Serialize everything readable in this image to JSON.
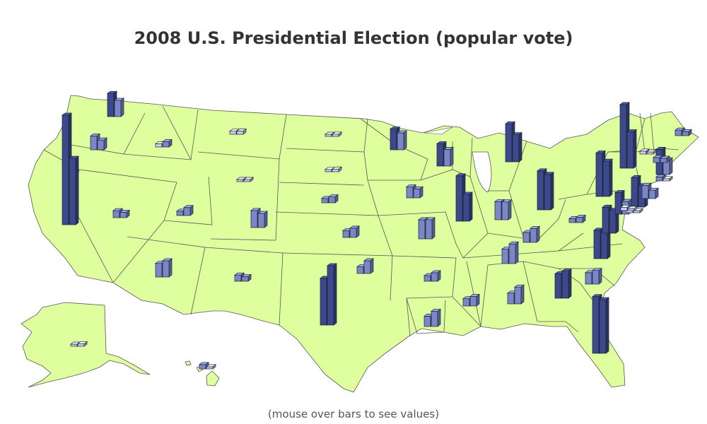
{
  "title": "2008 U.S. Presidential Election (popular vote)",
  "footnote": "(mouse over bars to see values)",
  "colors": {
    "land": "#dfff9f",
    "border": "#555555",
    "bar_large": "#3c4a8c",
    "bar_medium": "#7a87c6",
    "bar_small": "#c9cff0",
    "bar_outline": "#1e2233"
  },
  "chart_data": {
    "type": "map-bar",
    "legend": [],
    "bars_by_state": [
      {
        "state": "WA",
        "values": [
          1750000,
          1230000
        ]
      },
      {
        "state": "OR",
        "values": [
          1040000,
          740000
        ]
      },
      {
        "state": "CA",
        "values": [
          8270000,
          5010000
        ]
      },
      {
        "state": "NV",
        "values": [
          530000,
          410000
        ]
      },
      {
        "state": "ID",
        "values": [
          240000,
          400000
        ]
      },
      {
        "state": "MT",
        "values": [
          230000,
          240000
        ]
      },
      {
        "state": "WY",
        "values": [
          80000,
          160000
        ]
      },
      {
        "state": "UT",
        "values": [
          330000,
          600000
        ]
      },
      {
        "state": "CO",
        "values": [
          1290000,
          1070000
        ]
      },
      {
        "state": "AZ",
        "values": [
          1030000,
          1230000
        ]
      },
      {
        "state": "NM",
        "values": [
          470000,
          350000
        ]
      },
      {
        "state": "ND",
        "values": [
          140000,
          170000
        ]
      },
      {
        "state": "SD",
        "values": [
          170000,
          200000
        ]
      },
      {
        "state": "NE",
        "values": [
          330000,
          450000
        ]
      },
      {
        "state": "KS",
        "values": [
          510000,
          700000
        ]
      },
      {
        "state": "OK",
        "values": [
          500000,
          960000
        ]
      },
      {
        "state": "TX",
        "values": [
          3530000,
          4480000
        ]
      },
      {
        "state": "MN",
        "values": [
          1570000,
          1280000
        ]
      },
      {
        "state": "IA",
        "values": [
          830000,
          680000
        ]
      },
      {
        "state": "MO",
        "values": [
          1440000,
          1450000
        ]
      },
      {
        "state": "AR",
        "values": [
          420000,
          640000
        ]
      },
      {
        "state": "LA",
        "values": [
          780000,
          1150000
        ]
      },
      {
        "state": "WI",
        "values": [
          1680000,
          1260000
        ]
      },
      {
        "state": "IL",
        "values": [
          3420000,
          2030000
        ]
      },
      {
        "state": "MI",
        "values": [
          2870000,
          2050000
        ]
      },
      {
        "state": "IN",
        "values": [
          1370000,
          1350000
        ]
      },
      {
        "state": "OH",
        "values": [
          2940000,
          2680000
        ]
      },
      {
        "state": "KY",
        "values": [
          750000,
          1050000
        ]
      },
      {
        "state": "TN",
        "values": [
          1090000,
          1480000
        ]
      },
      {
        "state": "MS",
        "values": [
          550000,
          720000
        ]
      },
      {
        "state": "AL",
        "values": [
          810000,
          1270000
        ]
      },
      {
        "state": "GA",
        "values": [
          1840000,
          2050000
        ]
      },
      {
        "state": "FL",
        "values": [
          4280000,
          4050000
        ]
      },
      {
        "state": "SC",
        "values": [
          860000,
          1030000
        ]
      },
      {
        "state": "NC",
        "values": [
          2140000,
          2130000
        ]
      },
      {
        "state": "VA",
        "values": [
          1960000,
          1730000
        ]
      },
      {
        "state": "WV",
        "values": [
          300000,
          400000
        ]
      },
      {
        "state": "PA",
        "values": [
          3280000,
          2660000
        ]
      },
      {
        "state": "NY",
        "values": [
          4800000,
          2750000
        ]
      },
      {
        "state": "NJ",
        "values": [
          2220000,
          1610000
        ]
      },
      {
        "state": "MD",
        "values": [
          1630000,
          960000
        ]
      },
      {
        "state": "DE",
        "values": [
          260000,
          150000
        ]
      },
      {
        "state": "DC",
        "values": [
          250000,
          20000
        ]
      },
      {
        "state": "CT",
        "values": [
          1000000,
          630000
        ]
      },
      {
        "state": "RI",
        "values": [
          300000,
          170000
        ]
      },
      {
        "state": "MA",
        "values": [
          1900000,
          1110000
        ]
      },
      {
        "state": "VT",
        "values": [
          220000,
          100000
        ]
      },
      {
        "state": "NH",
        "values": [
          380000,
          320000
        ]
      },
      {
        "state": "ME",
        "values": [
          420000,
          300000
        ]
      },
      {
        "state": "AK",
        "values": [
          120000,
          190000
        ]
      },
      {
        "state": "HI",
        "values": [
          330000,
          120000
        ]
      }
    ]
  }
}
